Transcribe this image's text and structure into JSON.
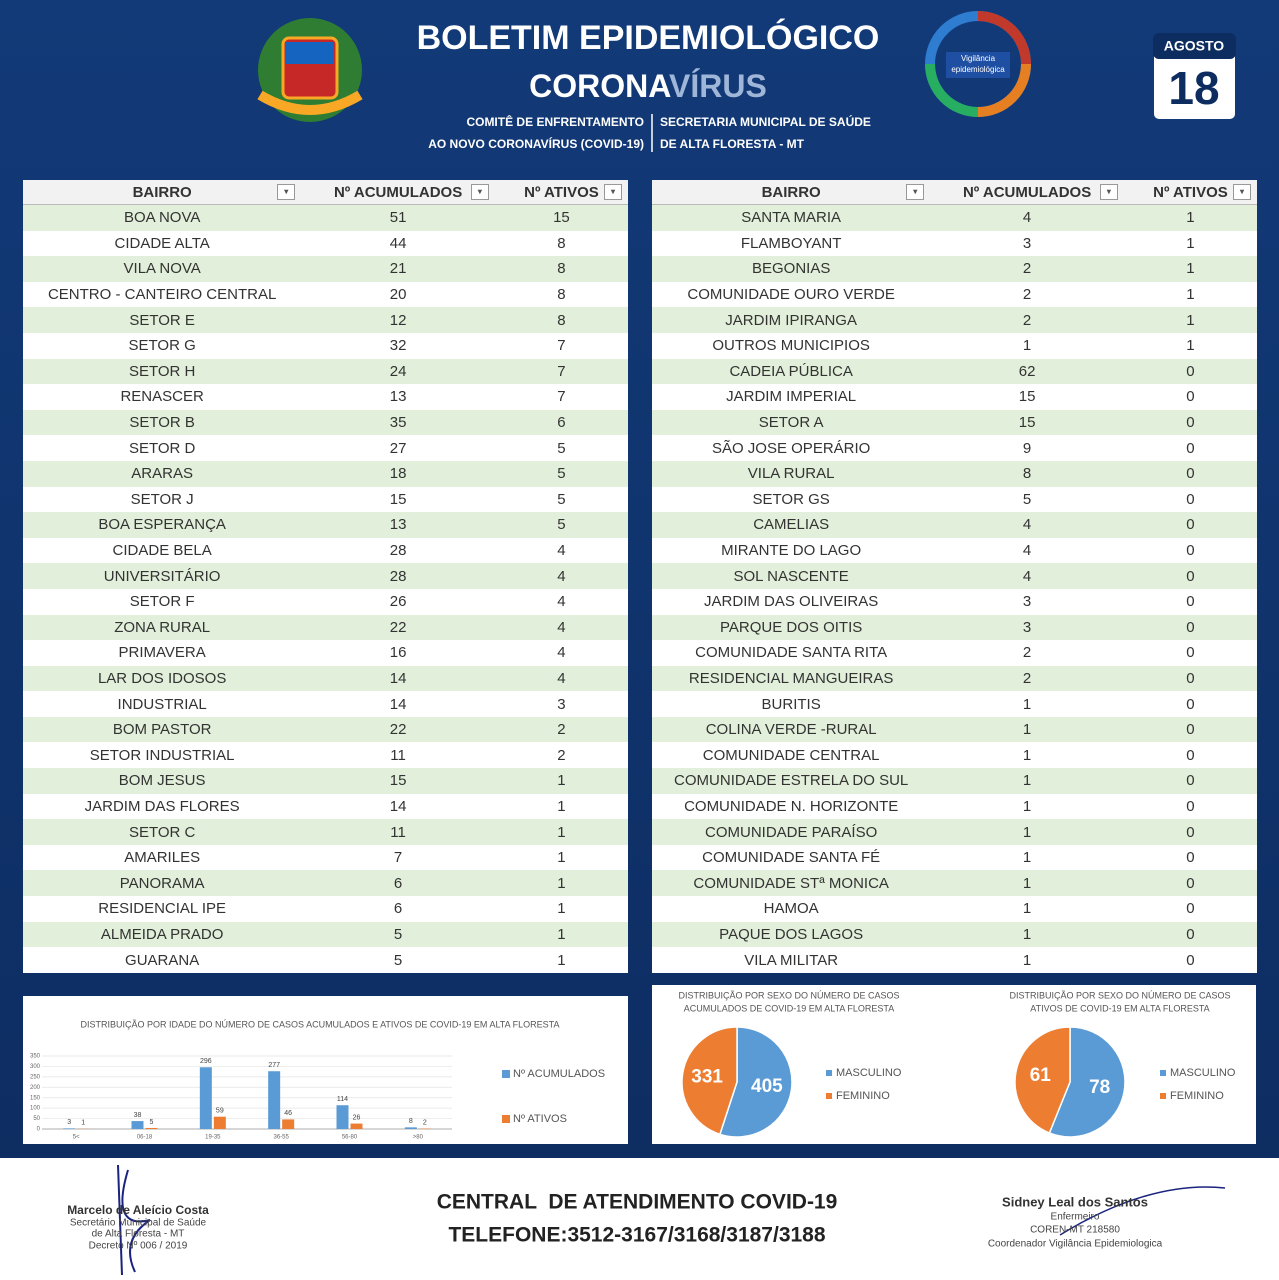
{
  "header": {
    "title": "BOLETIM EPIDEMIOLÓGICO",
    "subtitle": [
      "CORONA",
      "VÍRUS"
    ],
    "committee": [
      "COMITÊ DE ENFRENTAMENTO",
      "AO NOVO CORONAVÍRUS (COVID-19)"
    ],
    "department": [
      "SECRETARIA MUNICIPAL DE SAÚDE",
      "DE ALTA FLORESTA - MT"
    ],
    "date": {
      "month": "AGOSTO",
      "day": "18"
    },
    "logo_text": [
      "Vigilância",
      "epidemiológica"
    ]
  },
  "tables": [
    {
      "columns": [
        "BAIRRO",
        "Nº ACUMULADOS",
        "Nº ATIVOS"
      ],
      "rows": [
        [
          "BOA NOVA",
          51,
          15
        ],
        [
          "CIDADE ALTA",
          44,
          8
        ],
        [
          "VILA NOVA",
          21,
          8
        ],
        [
          "CENTRO - CANTEIRO CENTRAL",
          20,
          8
        ],
        [
          "SETOR E",
          12,
          8
        ],
        [
          "SETOR G",
          32,
          7
        ],
        [
          "SETOR H",
          24,
          7
        ],
        [
          "RENASCER",
          13,
          7
        ],
        [
          "SETOR B",
          35,
          6
        ],
        [
          "SETOR D",
          27,
          5
        ],
        [
          "ARARAS",
          18,
          5
        ],
        [
          "SETOR J",
          15,
          5
        ],
        [
          "BOA ESPERANÇA",
          13,
          5
        ],
        [
          "CIDADE BELA",
          28,
          4
        ],
        [
          "UNIVERSITÁRIO",
          28,
          4
        ],
        [
          "SETOR F",
          26,
          4
        ],
        [
          "ZONA RURAL",
          22,
          4
        ],
        [
          "PRIMAVERA",
          16,
          4
        ],
        [
          "LAR DOS IDOSOS",
          14,
          4
        ],
        [
          "INDUSTRIAL",
          14,
          3
        ],
        [
          "BOM PASTOR",
          22,
          2
        ],
        [
          "SETOR INDUSTRIAL",
          11,
          2
        ],
        [
          "BOM JESUS",
          15,
          1
        ],
        [
          "JARDIM DAS FLORES",
          14,
          1
        ],
        [
          "SETOR C",
          11,
          1
        ],
        [
          "AMARILES",
          7,
          1
        ],
        [
          "PANORAMA",
          6,
          1
        ],
        [
          "RESIDENCIAL IPE",
          6,
          1
        ],
        [
          "ALMEIDA PRADO",
          5,
          1
        ],
        [
          "GUARANA",
          5,
          1
        ]
      ]
    },
    {
      "columns": [
        "BAIRRO",
        "Nº ACUMULADOS",
        "Nº ATIVOS"
      ],
      "rows": [
        [
          "SANTA MARIA",
          4,
          1
        ],
        [
          "FLAMBOYANT",
          3,
          1
        ],
        [
          "BEGONIAS",
          2,
          1
        ],
        [
          "COMUNIDADE OURO VERDE",
          2,
          1
        ],
        [
          "JARDIM IPIRANGA",
          2,
          1
        ],
        [
          "OUTROS MUNICIPIOS",
          1,
          1
        ],
        [
          "CADEIA PÚBLICA",
          62,
          0
        ],
        [
          "JARDIM IMPERIAL",
          15,
          0
        ],
        [
          "SETOR A",
          15,
          0
        ],
        [
          "SÃO JOSE OPERÁRIO",
          9,
          0
        ],
        [
          "VILA RURAL",
          8,
          0
        ],
        [
          "SETOR GS",
          5,
          0
        ],
        [
          "CAMELIAS",
          4,
          0
        ],
        [
          "MIRANTE DO LAGO",
          4,
          0
        ],
        [
          "SOL NASCENTE",
          4,
          0
        ],
        [
          "JARDIM DAS OLIVEIRAS",
          3,
          0
        ],
        [
          "PARQUE DOS OITIS",
          3,
          0
        ],
        [
          "COMUNIDADE SANTA RITA",
          2,
          0
        ],
        [
          "RESIDENCIAL MANGUEIRAS",
          2,
          0
        ],
        [
          "BURITIS",
          1,
          0
        ],
        [
          "COLINA VERDE -RURAL",
          1,
          0
        ],
        [
          "COMUNIDADE CENTRAL",
          1,
          0
        ],
        [
          "COMUNIDADE ESTRELA DO SUL",
          1,
          0
        ],
        [
          "COMUNIDADE N. HORIZONTE",
          1,
          0
        ],
        [
          "COMUNIDADE PARAÍSO",
          1,
          0
        ],
        [
          "COMUNIDADE SANTA FÉ",
          1,
          0
        ],
        [
          "COMUNIDADE STª MONICA",
          1,
          0
        ],
        [
          "HAMOA",
          1,
          0
        ],
        [
          "PAQUE DOS LAGOS",
          1,
          0
        ],
        [
          "VILA MILITAR",
          1,
          0
        ]
      ]
    }
  ],
  "chart_data": [
    {
      "type": "bar",
      "title": "DISTRIBUIÇÃO POR IDADE DO NÚMERO DE CASOS ACUMULADOS E ATIVOS DE COVID-19 EM ALTA FLORESTA",
      "categories": [
        "5<",
        "06-18",
        "19-35",
        "36-55",
        "56-80",
        ">80"
      ],
      "series": [
        {
          "name": "Nº ACUMULADOS",
          "color": "#5b9bd5",
          "values": [
            3,
            38,
            296,
            277,
            114,
            8
          ]
        },
        {
          "name": "Nº ATIVOS",
          "color": "#ed7d31",
          "values": [
            1,
            5,
            59,
            46,
            26,
            2
          ]
        }
      ],
      "ylim": [
        0,
        350
      ],
      "yticks": [
        0,
        50,
        100,
        150,
        200,
        250,
        300,
        350
      ],
      "grid": true
    },
    {
      "type": "pie",
      "title": [
        "DISTRIBUIÇÃO POR SEXO DO NÚMERO DE CASOS",
        "ACUMULADOS DE COVID-19 EM ALTA FLORESTA"
      ],
      "categories": [
        "MASCULINO",
        "FEMININO"
      ],
      "values": [
        405,
        331
      ],
      "colors": [
        "#5b9bd5",
        "#ed7d31"
      ]
    },
    {
      "type": "pie",
      "title": [
        "DISTRIBUIÇÃO POR SEXO DO NÚMERO DE CASOS",
        "ATIVOS DE COVID-19 EM ALTA FLORESTA"
      ],
      "categories": [
        "MASCULINO",
        "FEMININO"
      ],
      "values": [
        78,
        61
      ],
      "colors": [
        "#5b9bd5",
        "#ed7d31"
      ]
    }
  ],
  "footer": {
    "left": [
      "Marcelo de Aleício Costa",
      "Secretário Municipal de Saúde",
      "de Alta Floresta - MT",
      "Decreto Nº 006 / 2019"
    ],
    "center": [
      "CENTRAL  DE ATENDIMENTO COVID-19",
      "TELEFONE:3512-3167/3168/3187/3188"
    ],
    "right": [
      "Sidney Leal dos Santos",
      "Enfermeiro",
      "COREN-MT 218580",
      "Coordenador Vigilância Epidemiologica"
    ]
  }
}
